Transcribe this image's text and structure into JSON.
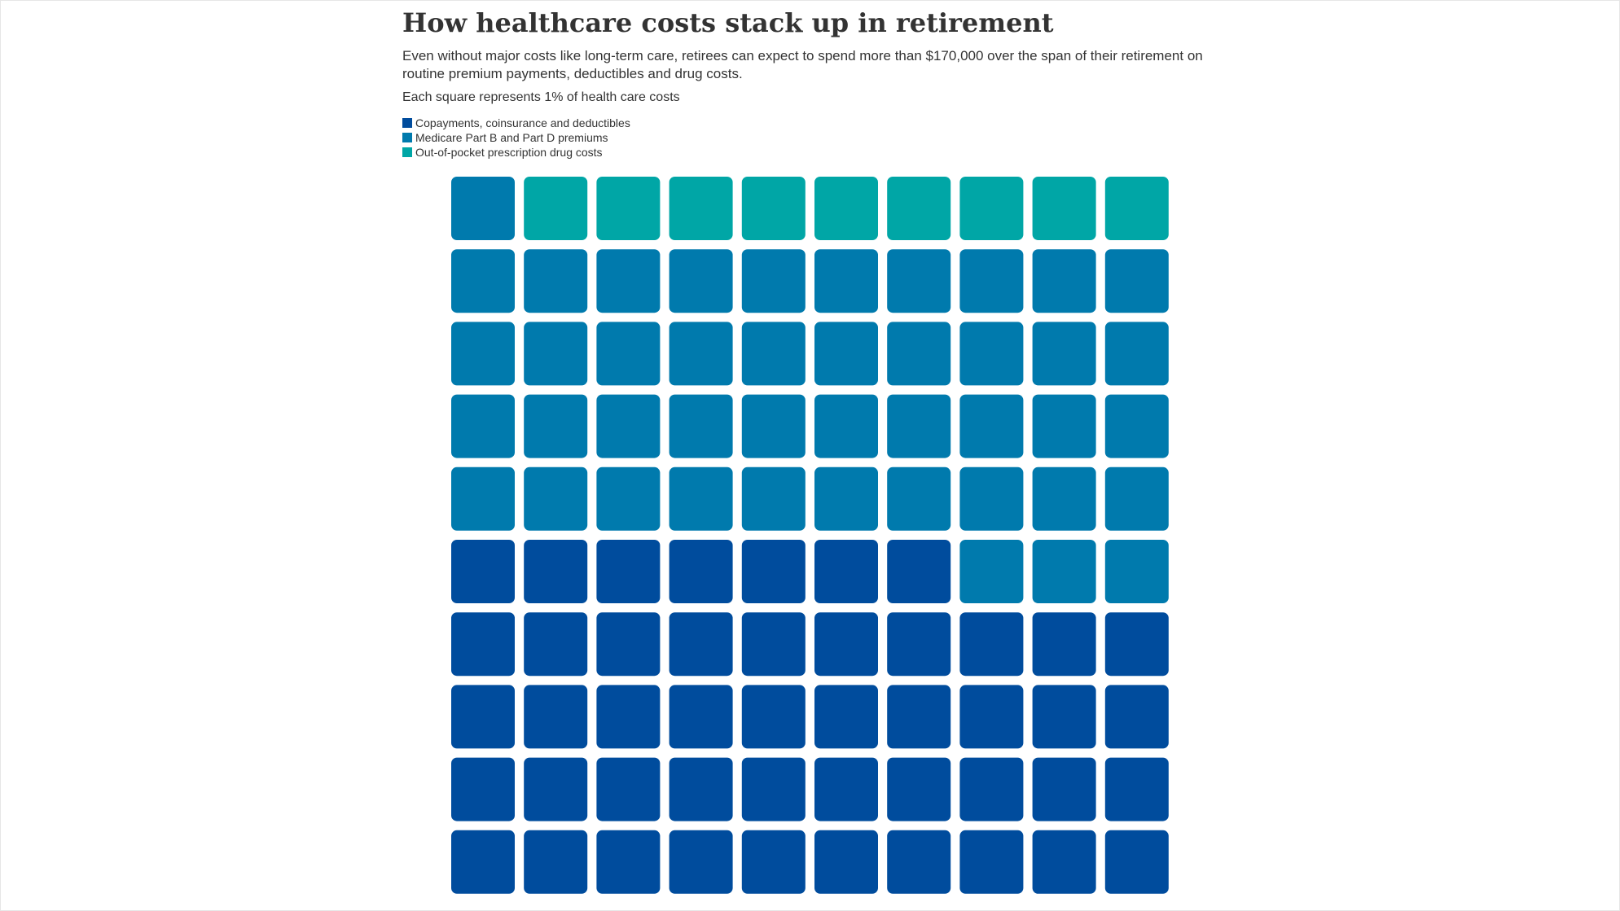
{
  "header": {
    "title": "How healthcare costs stack up in retirement",
    "subtitle": "Even without major costs like long-term care, retirees can expect to spend more than $170,000 over the span of their retirement on routine premium payments, deductibles and drug costs.",
    "note": "Each square represents 1% of health care costs"
  },
  "chart_data": {
    "type": "waffle",
    "grid": {
      "rows": 10,
      "columns": 10
    },
    "unit": "1% of health care costs",
    "fill_order": "bottom-left to top-right, row by row",
    "series": [
      {
        "name": "Copayments, coinsurance and deductibles",
        "value": 47,
        "color": "#004c9d"
      },
      {
        "name": "Medicare Part B and Part D premiums",
        "value": 44,
        "color": "#007aad"
      },
      {
        "name": "Out-of-pocket prescription drug costs",
        "value": 9,
        "color": "#00a6a6"
      }
    ]
  }
}
